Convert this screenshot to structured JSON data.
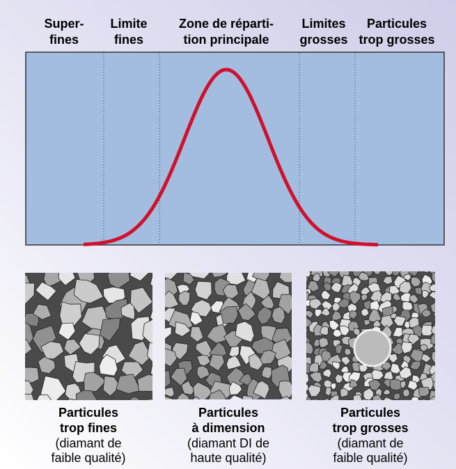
{
  "headers": [
    [
      "Super-",
      "fines"
    ],
    [
      "Limite",
      "fines"
    ],
    [
      "Zone de réparti-",
      "tion principale"
    ],
    [
      "Limites",
      "grosses"
    ],
    [
      "Particules",
      "trop grosses"
    ]
  ],
  "panels": [
    {
      "title": [
        "Particules",
        "trop fines"
      ],
      "note": [
        "(diamant de",
        "faible qualité)"
      ]
    },
    {
      "title": [
        "Particules",
        "à dimension"
      ],
      "note": [
        "(diamant DI de",
        "haute qualité)"
      ]
    },
    {
      "title": [
        "Particules",
        "trop grosses"
      ],
      "note": [
        "(diamant de",
        "faible qualité)"
      ]
    }
  ]
}
